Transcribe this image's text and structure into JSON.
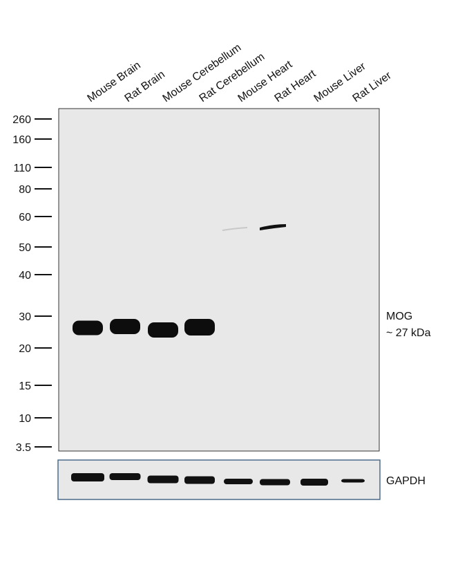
{
  "lanes": [
    "Mouse Brain",
    "Rat Brain",
    "Mouse Cerebellum",
    "Rat Cerebellum",
    "Mouse Heart",
    "Rat Heart",
    "Mouse Liver",
    "Rat Liver"
  ],
  "markers": [
    "260",
    "160",
    "110",
    "80",
    "60",
    "50",
    "40",
    "30",
    "20",
    "15",
    "10",
    "3.5"
  ],
  "target": {
    "name": "MOG",
    "size": "~ 27 kDa"
  },
  "loading_control": "GAPDH"
}
